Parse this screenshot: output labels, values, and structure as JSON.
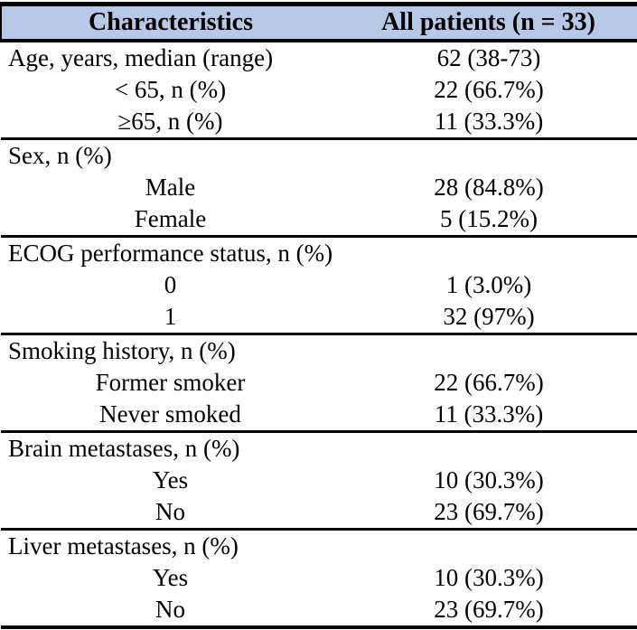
{
  "table": {
    "columns": [
      "Characteristics",
      "All patients (n = 33)"
    ],
    "sections": [
      {
        "header": {
          "label": "Age, years, median (range)",
          "value": "62 (38-73)"
        },
        "rows": [
          {
            "label": "< 65, n (%)",
            "value": "22 (66.7%)"
          },
          {
            "label": "≥65, n (%)",
            "value": "11 (33.3%)"
          }
        ]
      },
      {
        "header": {
          "label": "Sex, n (%)",
          "value": ""
        },
        "rows": [
          {
            "label": "Male",
            "value": "28 (84.8%)"
          },
          {
            "label": "Female",
            "value": "5 (15.2%)"
          }
        ]
      },
      {
        "header": {
          "label": "ECOG performance status, n (%)",
          "value": ""
        },
        "rows": [
          {
            "label": "0",
            "value": "1 (3.0%)"
          },
          {
            "label": "1",
            "value": "32 (97%)"
          }
        ]
      },
      {
        "header": {
          "label": "Smoking history, n (%)",
          "value": ""
        },
        "rows": [
          {
            "label": "Former smoker",
            "value": "22 (66.7%)"
          },
          {
            "label": "Never smoked",
            "value": "11 (33.3%)"
          }
        ]
      },
      {
        "header": {
          "label": "Brain metastases, n (%)",
          "value": ""
        },
        "rows": [
          {
            "label": "Yes",
            "value": "10 (30.3%)"
          },
          {
            "label": "No",
            "value": "23 (69.7%)"
          }
        ]
      },
      {
        "header": {
          "label": "Liver metastases, n (%)",
          "value": ""
        },
        "rows": [
          {
            "label": "Yes",
            "value": "10 (30.3%)"
          },
          {
            "label": "No",
            "value": "23 (69.7%)"
          }
        ]
      }
    ],
    "colors": {
      "header_bg": "#b7c9e6",
      "border": "#000000",
      "text": "#000000"
    }
  }
}
